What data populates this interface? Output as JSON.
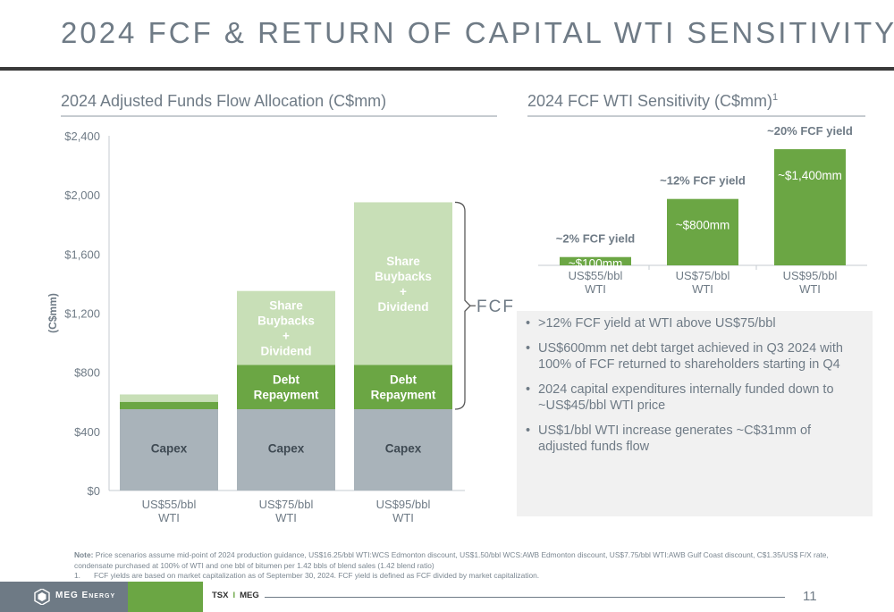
{
  "page": {
    "title": "2024 FCF & RETURN OF CAPITAL WTI SENSITIVITY",
    "page_number": "11"
  },
  "left_section": {
    "title": "2024 Adjusted Funds Flow Allocation (C$mm)"
  },
  "right_section": {
    "title": "2024 FCF WTI Sensitivity (C$mm)",
    "footnote_marker": "1"
  },
  "chart_data": [
    {
      "type": "bar",
      "stacked": true,
      "title": "2024 Adjusted Funds Flow Allocation (C$mm)",
      "ylabel": "(C$mm)",
      "ylim": [
        0,
        2400
      ],
      "yticks": [
        0,
        400,
        800,
        1200,
        1600,
        2000,
        2400
      ],
      "ytick_labels": [
        "$0",
        "$400",
        "$800",
        "$1,200",
        "$1,600",
        "$2,000",
        "$2,400"
      ],
      "categories": [
        [
          "US$55/bbl",
          "WTI"
        ],
        [
          "US$75/bbl",
          "WTI"
        ],
        [
          "US$95/bbl",
          "WTI"
        ]
      ],
      "series": [
        {
          "key": "capex",
          "label": "Capex",
          "color": "#a9b3ba",
          "values": [
            550,
            550,
            550
          ]
        },
        {
          "key": "debt",
          "label": "Debt Repayment",
          "label_lines": [
            "Debt",
            "Repayment"
          ],
          "color": "#6ba644",
          "values": [
            50,
            300,
            300
          ]
        },
        {
          "key": "share",
          "label": "Share Buybacks + Dividend",
          "label_lines": [
            "Share",
            "Buybacks",
            "+",
            "Dividend"
          ],
          "color": "#c8dfb7",
          "values": [
            50,
            500,
            1100
          ]
        }
      ],
      "bracket_label": "FCF",
      "grid": false
    },
    {
      "type": "bar",
      "title": "2024 FCF WTI Sensitivity (C$mm)",
      "color": "#6ba644",
      "ylim": [
        0,
        1550
      ],
      "categories": [
        [
          "US$55/bbl",
          "WTI"
        ],
        [
          "US$75/bbl",
          "WTI"
        ],
        [
          "US$95/bbl",
          "WTI"
        ]
      ],
      "values": [
        100,
        800,
        1400
      ],
      "value_labels": [
        "~$100mm",
        "~$800mm",
        "~$1,400mm"
      ],
      "yield_labels": [
        "~2% FCF yield",
        "~12% FCF yield",
        "~20% FCF yield"
      ],
      "grid": false
    }
  ],
  "bullets": [
    ">12% FCF yield at WTI above US$75/bbl",
    "US$600mm net debt target achieved in Q3 2024 with 100% of FCF returned to shareholders starting in Q4",
    "2024 capital expenditures internally funded down to ~US$45/bbl WTI price",
    "US$1/bbl WTI increase generates ~C$31mm of adjusted funds flow"
  ],
  "notes": {
    "label": "Note:",
    "text": "Price scenarios assume mid-point of 2024 production guidance, US$16.25/bbl WTI:WCS Edmonton discount, US$1.50/bbl WCS:AWB Edmonton discount, US$7.75/bbl WTI:AWB Gulf Coast discount, C$1.35/US$ F/X rate, condensate purchased at 100% of WTI and one bbl of bitumen per 1.42 bbls of blend sales (1.42 blend ratio)",
    "footnote_number": "1.",
    "footnote": "FCF yields are based on market capitalization as of September 30, 2024. FCF yield is defined as FCF divided by market capitalization."
  },
  "footer": {
    "logo_text": "MEG Energy",
    "ticker_a": "TSX",
    "ticker_sep": "I",
    "ticker_b": "MEG"
  }
}
